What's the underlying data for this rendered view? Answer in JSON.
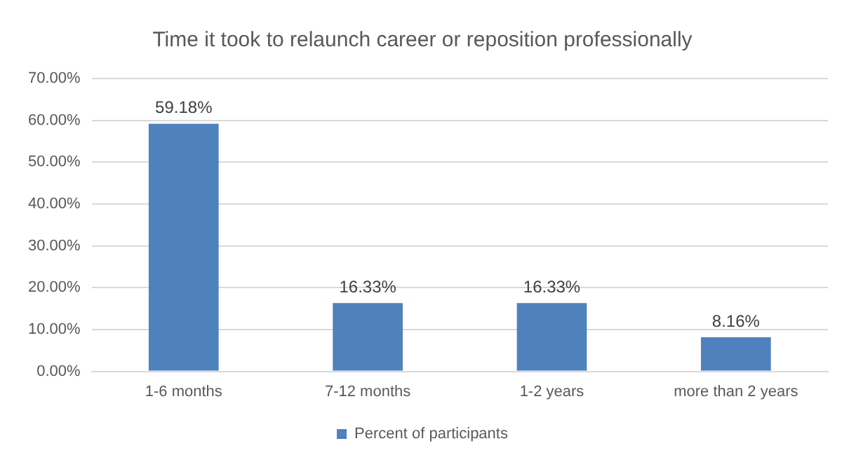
{
  "chart_data": {
    "type": "bar",
    "title": "Time it took to relaunch career or reposition professionally",
    "categories": [
      "1-6 months",
      "7-12 months",
      "1-2 years",
      "more than 2 years"
    ],
    "series": [
      {
        "name": "Percent of participants",
        "color": "#4f81bd",
        "values": [
          59.18,
          16.33,
          16.33,
          8.16
        ],
        "value_labels": [
          "59.18%",
          "16.33%",
          "16.33%",
          "8.16%"
        ]
      }
    ],
    "ylim": [
      0,
      70
    ],
    "yticks": [
      {
        "value": 0,
        "label": "0.00%"
      },
      {
        "value": 10,
        "label": "10.00%"
      },
      {
        "value": 20,
        "label": "20.00%"
      },
      {
        "value": 30,
        "label": "30.00%"
      },
      {
        "value": 40,
        "label": "40.00%"
      },
      {
        "value": 50,
        "label": "50.00%"
      },
      {
        "value": 60,
        "label": "60.00%"
      },
      {
        "value": 70,
        "label": "70.00%"
      }
    ],
    "grid": "y",
    "legend": "bottom"
  }
}
